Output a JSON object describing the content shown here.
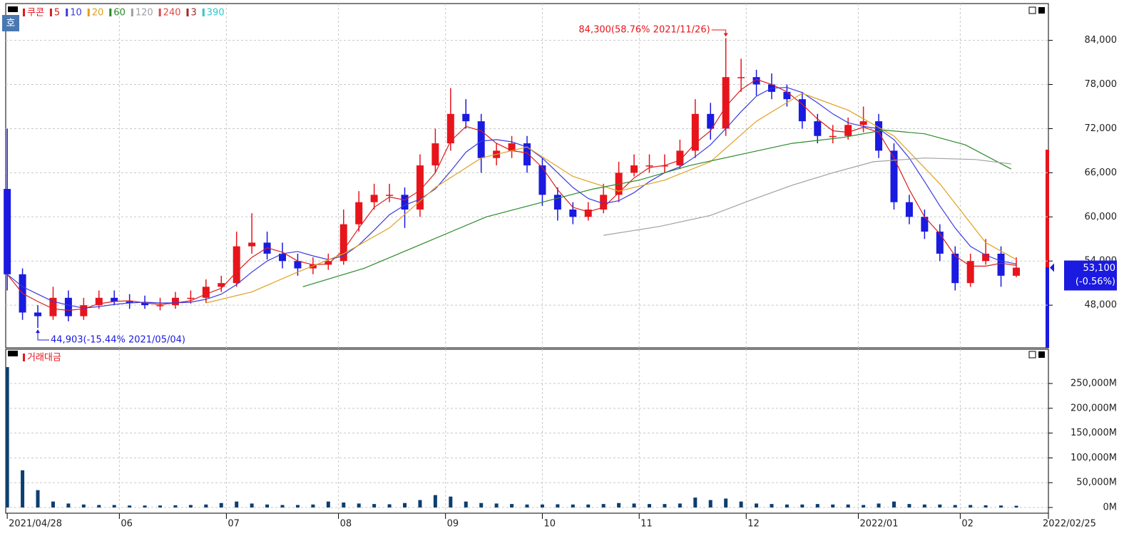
{
  "chart_data": [
    {
      "type": "candlestick",
      "title": "쿠콘",
      "up_color": "#e8141c",
      "down_color": "#1a1ae0",
      "x": [
        0,
        3,
        6,
        9,
        12,
        15,
        18,
        21,
        24,
        27,
        30,
        33,
        36,
        39,
        42,
        45,
        48,
        51,
        54,
        57,
        60,
        63,
        66,
        69,
        72,
        75,
        78,
        81,
        84,
        87,
        90,
        93,
        96,
        99,
        102,
        105,
        108,
        111,
        114,
        117,
        120,
        123,
        126,
        129,
        132,
        135,
        138,
        141,
        144,
        147,
        150,
        153,
        156,
        159,
        162,
        165,
        168,
        171,
        174,
        177,
        180,
        183,
        186,
        189,
        192,
        195,
        198
      ],
      "open": [
        63800,
        52200,
        47000,
        46500,
        49000,
        46500,
        48000,
        49000,
        48500,
        48300,
        48000,
        48000,
        49000,
        49000,
        50500,
        51000,
        56000,
        56500,
        55000,
        54000,
        53000,
        53500,
        54000,
        59000,
        62000,
        63000,
        63000,
        61000,
        67000,
        70000,
        74000,
        73000,
        68000,
        69000,
        70000,
        67000,
        63000,
        61000,
        60000,
        61000,
        63000,
        66000,
        67000,
        67000,
        67000,
        69000,
        74000,
        72000,
        79000,
        79000,
        78000,
        77000,
        76000,
        73000,
        71000,
        71000,
        72500,
        73000,
        69000,
        62000,
        60000,
        58000,
        55000,
        51000,
        54000,
        55000,
        52000
      ],
      "high": [
        72000,
        53000,
        48000,
        50500,
        50000,
        49000,
        50000,
        50000,
        49500,
        49300,
        49000,
        49800,
        50000,
        51500,
        52000,
        58000,
        60500,
        58000,
        56500,
        55000,
        54500,
        55000,
        61000,
        63500,
        64500,
        64500,
        64000,
        68500,
        72000,
        77500,
        76000,
        74000,
        70000,
        71000,
        71000,
        68000,
        64000,
        62000,
        62000,
        64500,
        67500,
        68500,
        68500,
        68500,
        70500,
        76000,
        75500,
        84300,
        81500,
        80000,
        79500,
        78000,
        77000,
        74000,
        72500,
        73500,
        75000,
        74000,
        70000,
        63000,
        61000,
        59000,
        56000,
        55000,
        57000,
        56000,
        54500
      ],
      "low": [
        50000,
        46000,
        44903,
        46000,
        45800,
        46000,
        47500,
        48000,
        47500,
        47500,
        47300,
        47500,
        48200,
        48300,
        49800,
        50500,
        55000,
        54200,
        53000,
        52000,
        52200,
        52800,
        53500,
        58000,
        61000,
        62000,
        58500,
        60000,
        66000,
        69000,
        72000,
        66000,
        67000,
        68000,
        66000,
        61500,
        59500,
        59000,
        59500,
        60500,
        62000,
        65500,
        66000,
        66000,
        66500,
        68000,
        70500,
        71000,
        77000,
        76500,
        76000,
        75000,
        72000,
        70000,
        70000,
        70500,
        71500,
        68000,
        61000,
        59000,
        57000,
        54000,
        50000,
        50500,
        53500,
        50500,
        51800
      ],
      "close": [
        52200,
        47000,
        46500,
        49000,
        46500,
        48000,
        49000,
        48500,
        48300,
        48000,
        48000,
        49000,
        49000,
        50500,
        51000,
        56000,
        56500,
        55000,
        54000,
        53000,
        53500,
        54000,
        59000,
        62000,
        63000,
        63000,
        61000,
        67000,
        70000,
        74000,
        73000,
        68000,
        69000,
        70000,
        67000,
        63000,
        61000,
        60000,
        61000,
        63000,
        66000,
        67000,
        67000,
        67000,
        69000,
        74000,
        72000,
        79000,
        79000,
        78000,
        77000,
        76000,
        73000,
        71000,
        71000,
        72500,
        73000,
        69000,
        62000,
        60000,
        58000,
        55000,
        51000,
        54000,
        55000,
        52000,
        53100
      ],
      "series": [
        {
          "name": "5",
          "color": "#d81e1e",
          "values": [
            52200,
            49600,
            48500,
            47500,
            47300,
            47500,
            48200,
            48500,
            48600,
            48300,
            48100,
            48300,
            48600,
            49500,
            50300,
            52500,
            54500,
            55800,
            55200,
            54000,
            53500,
            53600,
            55500,
            58500,
            61300,
            62700,
            62300,
            63600,
            66000,
            70300,
            72300,
            71700,
            70000,
            69000,
            68700,
            66700,
            63700,
            61300,
            60700,
            61300,
            63300,
            65300,
            66700,
            67000,
            67700,
            70000,
            71700,
            75000,
            77300,
            78700,
            78000,
            77000,
            75300,
            73300,
            71700,
            71500,
            72200,
            71500,
            68000,
            63700,
            60000,
            57700,
            54700,
            53300,
            53300,
            53700,
            53400
          ]
        },
        {
          "name": "10",
          "color": "#3a3ae0",
          "values": [
            52200,
            50500,
            49500,
            48500,
            48000,
            47600,
            47800,
            48100,
            48300,
            48400,
            48300,
            48300,
            48400,
            48800,
            49500,
            50800,
            52500,
            54000,
            55000,
            55300,
            54700,
            54200,
            54700,
            56200,
            58200,
            60300,
            61600,
            62400,
            63800,
            66200,
            68800,
            70300,
            70500,
            70200,
            69500,
            68000,
            66000,
            64000,
            62500,
            61800,
            62200,
            63300,
            64800,
            66000,
            66800,
            68200,
            69800,
            72000,
            74300,
            76400,
            77500,
            77600,
            76900,
            75500,
            74000,
            72800,
            72300,
            72000,
            70500,
            68000,
            64800,
            61500,
            58500,
            56000,
            54800,
            54000,
            53600
          ]
        },
        {
          "name": "20",
          "color": "#e0a020",
          "x": [
            39,
            48,
            57,
            66,
            75,
            84,
            93,
            102,
            111,
            120,
            129,
            138,
            147,
            156,
            165,
            174,
            183,
            192,
            198
          ],
          "values": [
            48300,
            49800,
            52500,
            55000,
            58500,
            64000,
            68000,
            69500,
            65500,
            63500,
            65000,
            67500,
            73000,
            76800,
            74500,
            71000,
            64500,
            56500,
            54200
          ]
        },
        {
          "name": "60",
          "color": "#2a8a2a",
          "x": [
            58,
            70,
            82,
            94,
            105,
            115,
            124,
            134,
            144,
            154,
            164,
            172,
            180,
            188,
            197
          ],
          "values": [
            50500,
            53000,
            56500,
            60000,
            62000,
            63800,
            65000,
            67000,
            68500,
            70000,
            70800,
            71800,
            71300,
            69800,
            66500
          ]
        },
        {
          "name": "120",
          "color": "#a0a0a0",
          "x": [
            117,
            128,
            138,
            146,
            154,
            162,
            170,
            180,
            190,
            197
          ],
          "values": [
            57500,
            58700,
            60200,
            62300,
            64300,
            66000,
            67500,
            68000,
            67800,
            67200
          ]
        },
        {
          "name": "240",
          "color": "#e04848"
        },
        {
          "name": "3",
          "color": "#a02828"
        },
        {
          "name": "390",
          "color": "#30c8c8"
        }
      ],
      "annotations": [
        {
          "text": "84,300(58.76% 2021/11/26)",
          "x": 141,
          "y": 84300,
          "color": "#e8141c"
        },
        {
          "text": "44,903(-15.44% 2021/05/04)",
          "x": 6,
          "y": 44903,
          "color": "#1a1ae0"
        }
      ],
      "last_price": {
        "value": 53100,
        "label": "53,100",
        "change": "(-0.56%)",
        "color": "#1a1ae0"
      },
      "xlim": [
        -0.3,
        204.3
      ],
      "ylim": [
        42200,
        89000
      ],
      "yticks": [
        {
          "value": 48000,
          "label": "48,000"
        },
        {
          "value": 54000,
          "label": "54,000"
        },
        {
          "value": 60000,
          "label": "60,000"
        },
        {
          "value": 66000,
          "label": "66,000"
        },
        {
          "value": 72000,
          "label": "72,000"
        },
        {
          "value": 78000,
          "label": "78,000"
        },
        {
          "value": 84000,
          "label": "84,000"
        }
      ],
      "grid": true
    },
    {
      "type": "bar",
      "title": "거래대금",
      "color": "#0d3f70",
      "x": [
        0,
        3,
        6,
        9,
        12,
        15,
        18,
        21,
        24,
        27,
        30,
        33,
        36,
        39,
        42,
        45,
        48,
        51,
        54,
        57,
        60,
        63,
        66,
        69,
        72,
        75,
        78,
        81,
        84,
        87,
        90,
        93,
        96,
        99,
        102,
        105,
        108,
        111,
        114,
        117,
        120,
        123,
        126,
        129,
        132,
        135,
        138,
        141,
        144,
        147,
        150,
        153,
        156,
        159,
        162,
        165,
        168,
        171,
        174,
        177,
        180,
        183,
        186,
        189,
        192,
        195,
        198
      ],
      "values": [
        283000,
        75000,
        35000,
        12000,
        8000,
        6000,
        5000,
        5000,
        4000,
        4000,
        4000,
        4500,
        5000,
        6000,
        9000,
        12000,
        8000,
        6000,
        5000,
        5000,
        6000,
        12000,
        10000,
        8000,
        7000,
        6500,
        9000,
        15000,
        25000,
        22000,
        12000,
        9000,
        8000,
        7000,
        6000,
        6000,
        6500,
        6000,
        6000,
        7000,
        9000,
        8000,
        7000,
        7000,
        8000,
        20000,
        15000,
        18000,
        12000,
        8000,
        7000,
        6000,
        6000,
        7000,
        6000,
        6000,
        5000,
        8000,
        12000,
        7000,
        6000,
        6000,
        5000,
        5000,
        4500,
        4000,
        3500
      ],
      "xlim": [
        -0.3,
        204.3
      ],
      "ylim": [
        -11500,
        319000
      ],
      "yticks": [
        {
          "value": 0,
          "label": "0M"
        },
        {
          "value": 50000,
          "label": "50,000M"
        },
        {
          "value": 100000,
          "label": "100,000M"
        },
        {
          "value": 150000,
          "label": "150,000M"
        },
        {
          "value": 200000,
          "label": "200,000M"
        },
        {
          "value": 250000,
          "label": "250,000M"
        }
      ],
      "xticks": [
        {
          "value": 0,
          "label": "2021/04/28"
        },
        {
          "value": 22,
          "label": "06"
        },
        {
          "value": 43,
          "label": "07"
        },
        {
          "value": 65,
          "label": "08"
        },
        {
          "value": 86,
          "label": "09"
        },
        {
          "value": 105,
          "label": "10"
        },
        {
          "value": 124,
          "label": "11"
        },
        {
          "value": 145,
          "label": "12"
        },
        {
          "value": 167,
          "label": "2022/01"
        },
        {
          "value": 187,
          "label": "02"
        },
        {
          "value": 204.3,
          "label": "2022/02/25"
        }
      ],
      "grid": true
    }
  ]
}
